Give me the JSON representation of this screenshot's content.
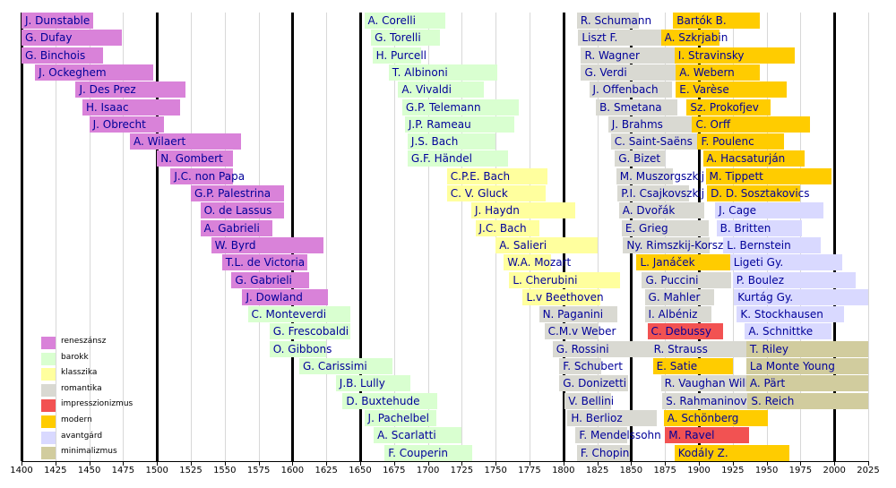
{
  "chart_data": {
    "type": "timeline-bar",
    "xlim": [
      1400,
      2025
    ],
    "x_ticks": [
      1400,
      1425,
      1450,
      1475,
      1500,
      1525,
      1550,
      1575,
      1600,
      1625,
      1650,
      1675,
      1700,
      1725,
      1750,
      1775,
      1800,
      1825,
      1850,
      1875,
      1900,
      1925,
      1950,
      1975,
      2000,
      2025
    ],
    "x_tick_labels": [
      "1400",
      "1425",
      "1450",
      "1475",
      "1500",
      "1525",
      "1550",
      "1575",
      "1600",
      "1625",
      "1650",
      "1675",
      "1700",
      "1725",
      "1750",
      "1775",
      "1800",
      "1825",
      "1850",
      "1875",
      "1900",
      "1925",
      "1950",
      "1975",
      "2000",
      "2025"
    ],
    "era_lines": [
      1400,
      1500,
      1600,
      1650,
      1800,
      1850,
      1900,
      2000
    ],
    "legend": [
      {
        "key": "ren",
        "label": "reneszánsz",
        "color": "#d982d9"
      },
      {
        "key": "bar",
        "label": "barokk",
        "color": "#d9ffd0"
      },
      {
        "key": "kla",
        "label": "klasszika",
        "color": "#ffff9e"
      },
      {
        "key": "rom",
        "label": "romantika",
        "color": "#d9d9d2"
      },
      {
        "key": "imp",
        "label": "impresszionizmus",
        "color": "#f25252"
      },
      {
        "key": "mod",
        "label": "modern",
        "color": "#ffcc00"
      },
      {
        "key": "avg",
        "label": "avantgárd",
        "color": "#d9d9ff"
      },
      {
        "key": "min",
        "label": "minimalizmus",
        "color": "#d1cc9e"
      }
    ],
    "series": [
      {
        "name": "J. Dunstable",
        "era": "ren",
        "start": 1400,
        "end": 1453,
        "row": 0
      },
      {
        "name": "G. Dufay",
        "era": "ren",
        "start": 1400,
        "end": 1474,
        "row": 1
      },
      {
        "name": "G. Binchois",
        "era": "ren",
        "start": 1400,
        "end": 1460,
        "row": 2
      },
      {
        "name": "J. Ockeghem",
        "era": "ren",
        "start": 1410,
        "end": 1497,
        "row": 3
      },
      {
        "name": "J. Des Prez",
        "era": "ren",
        "start": 1440,
        "end": 1521,
        "row": 4
      },
      {
        "name": "H. Isaac",
        "era": "ren",
        "start": 1445,
        "end": 1517,
        "row": 5
      },
      {
        "name": "J. Obrecht",
        "era": "ren",
        "start": 1450,
        "end": 1505,
        "row": 6
      },
      {
        "name": "A. Wilaert",
        "era": "ren",
        "start": 1480,
        "end": 1562,
        "row": 7
      },
      {
        "name": "N. Gombert",
        "era": "ren",
        "start": 1500,
        "end": 1556,
        "row": 8
      },
      {
        "name": "J.C. non Papa",
        "era": "ren",
        "start": 1510,
        "end": 1556,
        "row": 9
      },
      {
        "name": "G.P. Palestrina",
        "era": "ren",
        "start": 1525,
        "end": 1594,
        "row": 10
      },
      {
        "name": "O. de Lassus",
        "era": "ren",
        "start": 1532,
        "end": 1594,
        "row": 11
      },
      {
        "name": "A. Gabrieli",
        "era": "ren",
        "start": 1532,
        "end": 1585,
        "row": 12
      },
      {
        "name": "W. Byrd",
        "era": "ren",
        "start": 1540,
        "end": 1623,
        "row": 13
      },
      {
        "name": "T.L. de Victoria",
        "era": "ren",
        "start": 1548,
        "end": 1611,
        "row": 14
      },
      {
        "name": "G. Gabrieli",
        "era": "ren",
        "start": 1555,
        "end": 1612,
        "row": 15
      },
      {
        "name": "J. Dowland",
        "era": "ren",
        "start": 1563,
        "end": 1626,
        "row": 16
      },
      {
        "name": "C. Monteverdi",
        "era": "bar",
        "start": 1567,
        "end": 1643,
        "row": 17
      },
      {
        "name": "G. Frescobaldi",
        "era": "bar",
        "start": 1583,
        "end": 1643,
        "row": 18
      },
      {
        "name": "O. Gibbons",
        "era": "bar",
        "start": 1583,
        "end": 1625,
        "row": 19
      },
      {
        "name": "G. Carissimi",
        "era": "bar",
        "start": 1605,
        "end": 1674,
        "row": 20
      },
      {
        "name": "J.B. Lully",
        "era": "bar",
        "start": 1632,
        "end": 1687,
        "row": 21
      },
      {
        "name": "D. Buxtehude",
        "era": "bar",
        "start": 1637,
        "end": 1707,
        "row": 22
      },
      {
        "name": "J. Pachelbel",
        "era": "bar",
        "start": 1653,
        "end": 1706,
        "row": 23
      },
      {
        "name": "A. Scarlatti",
        "era": "bar",
        "start": 1660,
        "end": 1725,
        "row": 24
      },
      {
        "name": "F. Couperin",
        "era": "bar",
        "start": 1668,
        "end": 1733,
        "row": 25
      },
      {
        "name": "A. Corelli",
        "era": "bar",
        "start": 1653,
        "end": 1713,
        "row": 0
      },
      {
        "name": "G. Torelli",
        "era": "bar",
        "start": 1658,
        "end": 1709,
        "row": 1
      },
      {
        "name": "H. Purcell",
        "era": "bar",
        "start": 1659,
        "end": 1695,
        "row": 2
      },
      {
        "name": "T. Albinoni",
        "era": "bar",
        "start": 1671,
        "end": 1751,
        "row": 3
      },
      {
        "name": "A. Vivaldi",
        "era": "bar",
        "start": 1678,
        "end": 1741,
        "row": 4
      },
      {
        "name": "G.P. Telemann",
        "era": "bar",
        "start": 1681,
        "end": 1767,
        "row": 5
      },
      {
        "name": "J.P. Rameau",
        "era": "bar",
        "start": 1683,
        "end": 1764,
        "row": 6
      },
      {
        "name": "J.S. Bach",
        "era": "bar",
        "start": 1685,
        "end": 1750,
        "row": 7
      },
      {
        "name": "G.F. Händel",
        "era": "bar",
        "start": 1685,
        "end": 1759,
        "row": 8
      },
      {
        "name": "C.P.E. Bach",
        "era": "kla",
        "start": 1714,
        "end": 1788,
        "row": 9
      },
      {
        "name": "C. V. Gluck",
        "era": "kla",
        "start": 1714,
        "end": 1787,
        "row": 10
      },
      {
        "name": "J. Haydn",
        "era": "kla",
        "start": 1732,
        "end": 1809,
        "row": 11
      },
      {
        "name": "J.C. Bach",
        "era": "kla",
        "start": 1735,
        "end": 1782,
        "row": 12
      },
      {
        "name": "A. Salieri",
        "era": "kla",
        "start": 1750,
        "end": 1825,
        "row": 13
      },
      {
        "name": "W.A. Mozart",
        "era": "kla",
        "start": 1756,
        "end": 1791,
        "row": 14
      },
      {
        "name": "L. Cherubini",
        "era": "kla",
        "start": 1760,
        "end": 1842,
        "row": 15
      },
      {
        "name": "L.v Beethoven",
        "era": "kla",
        "start": 1770,
        "end": 1827,
        "row": 16
      },
      {
        "name": "N. Paganini",
        "era": "rom",
        "start": 1782,
        "end": 1840,
        "row": 17
      },
      {
        "name": "C.M.v Weber",
        "era": "rom",
        "start": 1786,
        "end": 1826,
        "row": 18
      },
      {
        "name": "G. Rossini",
        "era": "rom",
        "start": 1792,
        "end": 1868,
        "row": 19
      },
      {
        "name": "F. Schubert",
        "era": "rom",
        "start": 1797,
        "end": 1828,
        "row": 20
      },
      {
        "name": "G. Donizetti",
        "era": "rom",
        "start": 1797,
        "end": 1848,
        "row": 21
      },
      {
        "name": "V. Bellini",
        "era": "rom",
        "start": 1801,
        "end": 1835,
        "row": 22
      },
      {
        "name": "H. Berlioz",
        "era": "rom",
        "start": 1803,
        "end": 1869,
        "row": 23
      },
      {
        "name": "F. Mendelssohn",
        "era": "rom",
        "start": 1809,
        "end": 1847,
        "row": 24
      },
      {
        "name": "F. Chopin",
        "era": "rom",
        "start": 1810,
        "end": 1849,
        "row": 25
      },
      {
        "name": "R. Schumann",
        "era": "rom",
        "start": 1810,
        "end": 1856,
        "row": 0
      },
      {
        "name": "Liszt F.",
        "era": "rom",
        "start": 1811,
        "end": 1886,
        "row": 1
      },
      {
        "name": "R. Wagner",
        "era": "rom",
        "start": 1813,
        "end": 1883,
        "row": 2
      },
      {
        "name": "G. Verdi",
        "era": "rom",
        "start": 1813,
        "end": 1901,
        "row": 3
      },
      {
        "name": "J. Offenbach",
        "era": "rom",
        "start": 1819,
        "end": 1880,
        "row": 4
      },
      {
        "name": "B. Smetana",
        "era": "rom",
        "start": 1824,
        "end": 1884,
        "row": 5
      },
      {
        "name": "J. Brahms",
        "era": "rom",
        "start": 1833,
        "end": 1897,
        "row": 6
      },
      {
        "name": "C. Saint-Saëns",
        "era": "rom",
        "start": 1835,
        "end": 1921,
        "row": 7
      },
      {
        "name": "G. Bizet",
        "era": "rom",
        "start": 1838,
        "end": 1875,
        "row": 8
      },
      {
        "name": "M. Muszorgszkij",
        "era": "rom",
        "start": 1839,
        "end": 1881,
        "row": 9
      },
      {
        "name": "P.I. Csajkovszkij",
        "era": "rom",
        "start": 1840,
        "end": 1893,
        "row": 10
      },
      {
        "name": "A. Dvořák",
        "era": "rom",
        "start": 1841,
        "end": 1904,
        "row": 11
      },
      {
        "name": "E. Grieg",
        "era": "rom",
        "start": 1843,
        "end": 1907,
        "row": 12
      },
      {
        "name": "Ny. Rimszkij-Korsz.",
        "era": "rom",
        "start": 1844,
        "end": 1908,
        "row": 13
      },
      {
        "name": "L. Janáček",
        "era": "mod",
        "start": 1854,
        "end": 1928,
        "row": 14
      },
      {
        "name": "G. Puccini",
        "era": "rom",
        "start": 1858,
        "end": 1924,
        "row": 15
      },
      {
        "name": "G. Mahler",
        "era": "rom",
        "start": 1860,
        "end": 1911,
        "row": 16
      },
      {
        "name": "I. Albéniz",
        "era": "rom",
        "start": 1860,
        "end": 1909,
        "row": 17
      },
      {
        "name": "C. Debussy",
        "era": "imp",
        "start": 1862,
        "end": 1918,
        "row": 18
      },
      {
        "name": "R. Strauss",
        "era": "rom",
        "start": 1864,
        "end": 1949,
        "row": 19
      },
      {
        "name": "E. Satie",
        "era": "mod",
        "start": 1866,
        "end": 1925,
        "row": 20
      },
      {
        "name": "R. Vaughan Williams",
        "era": "rom",
        "start": 1872,
        "end": 1958,
        "row": 21
      },
      {
        "name": "S. Rahmaninov",
        "era": "rom",
        "start": 1873,
        "end": 1943,
        "row": 22
      },
      {
        "name": "A. Schönberg",
        "era": "mod",
        "start": 1874,
        "end": 1951,
        "row": 23
      },
      {
        "name": "M. Ravel",
        "era": "imp",
        "start": 1875,
        "end": 1937,
        "row": 24
      },
      {
        "name": "Kodály Z.",
        "era": "mod",
        "start": 1882,
        "end": 1967,
        "row": 25
      },
      {
        "name": "Bartók B.",
        "era": "mod",
        "start": 1881,
        "end": 1945,
        "row": 0
      },
      {
        "name": "A. Szkrjabin",
        "era": "mod",
        "start": 1872,
        "end": 1915,
        "row": 1
      },
      {
        "name": "I. Stravinsky",
        "era": "mod",
        "start": 1882,
        "end": 1971,
        "row": 2
      },
      {
        "name": "A. Webern",
        "era": "mod",
        "start": 1883,
        "end": 1945,
        "row": 3
      },
      {
        "name": "E. Varèse",
        "era": "mod",
        "start": 1883,
        "end": 1965,
        "row": 4
      },
      {
        "name": "Sz. Prokofjev",
        "era": "mod",
        "start": 1891,
        "end": 1953,
        "row": 5
      },
      {
        "name": "C. Orff",
        "era": "mod",
        "start": 1895,
        "end": 1982,
        "row": 6
      },
      {
        "name": "F. Poulenc",
        "era": "mod",
        "start": 1899,
        "end": 1963,
        "row": 7
      },
      {
        "name": "A. Hacsaturján",
        "era": "mod",
        "start": 1903,
        "end": 1978,
        "row": 8
      },
      {
        "name": "M. Tippett",
        "era": "mod",
        "start": 1905,
        "end": 1998,
        "row": 9
      },
      {
        "name": "D. D. Sosztakovics",
        "era": "mod",
        "start": 1906,
        "end": 1975,
        "row": 10
      },
      {
        "name": "J. Cage",
        "era": "avg",
        "start": 1912,
        "end": 1992,
        "row": 11
      },
      {
        "name": "B. Britten",
        "era": "avg",
        "start": 1913,
        "end": 1976,
        "row": 12
      },
      {
        "name": "L. Bernstein",
        "era": "avg",
        "start": 1918,
        "end": 1990,
        "row": 13
      },
      {
        "name": "Ligeti Gy.",
        "era": "avg",
        "start": 1923,
        "end": 2006,
        "row": 14
      },
      {
        "name": "P. Boulez",
        "era": "avg",
        "start": 1925,
        "end": 2016,
        "row": 15
      },
      {
        "name": "Kurtág Gy.",
        "era": "avg",
        "start": 1926,
        "end": 2025,
        "row": 16
      },
      {
        "name": "K. Stockhausen",
        "era": "avg",
        "start": 1928,
        "end": 2007,
        "row": 17
      },
      {
        "name": "A. Schnittke",
        "era": "avg",
        "start": 1934,
        "end": 1998,
        "row": 18
      },
      {
        "name": "T. Riley",
        "era": "min",
        "start": 1935,
        "end": 2025,
        "row": 19
      },
      {
        "name": "La Monte Young",
        "era": "min",
        "start": 1935,
        "end": 2025,
        "row": 20
      },
      {
        "name": "A. Pärt",
        "era": "min",
        "start": 1935,
        "end": 2025,
        "row": 21
      },
      {
        "name": "S. Reich",
        "era": "min",
        "start": 1936,
        "end": 2025,
        "row": 22
      }
    ]
  }
}
